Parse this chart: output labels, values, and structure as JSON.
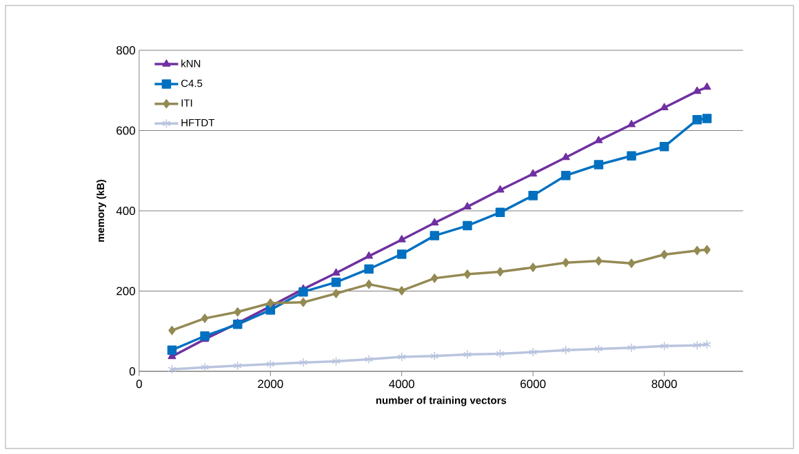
{
  "chart_data": {
    "type": "line",
    "xlabel": "number of training vectors",
    "ylabel": "memory (kB)",
    "x": [
      500,
      1000,
      1500,
      2000,
      2500,
      3000,
      3500,
      4000,
      4500,
      5000,
      5500,
      6000,
      6500,
      7000,
      7500,
      8000,
      8500,
      8650
    ],
    "series": [
      {
        "name": "kNN",
        "color": "#7030a0",
        "marker": "triangle",
        "values": [
          37,
          80,
          120,
          162,
          205,
          245,
          287,
          328,
          370,
          410,
          452,
          492,
          533,
          575,
          615,
          657,
          698,
          708
        ]
      },
      {
        "name": "C4.5",
        "color": "#0070c0",
        "marker": "square",
        "values": [
          53,
          88,
          117,
          153,
          198,
          222,
          255,
          292,
          338,
          363,
          396,
          438,
          488,
          515,
          537,
          560,
          627,
          630
        ]
      },
      {
        "name": "ITI",
        "color": "#948a54",
        "marker": "diamond",
        "values": [
          102,
          132,
          148,
          170,
          172,
          194,
          217,
          201,
          232,
          242,
          248,
          259,
          271,
          275,
          269,
          291,
          301,
          303
        ]
      },
      {
        "name": "HFTDT",
        "color": "#b9c4de",
        "marker": "cross",
        "values": [
          5,
          10,
          14,
          18,
          22,
          25,
          30,
          36,
          38,
          42,
          44,
          48,
          53,
          56,
          59,
          63,
          65,
          67
        ]
      }
    ],
    "xlim": [
      0,
      9200
    ],
    "ylim": [
      0,
      800
    ],
    "xticks": [
      0,
      2000,
      4000,
      6000,
      8000
    ],
    "yticks": [
      0,
      200,
      400,
      600,
      800
    ],
    "grid": "y",
    "legend": "top left",
    "line_style": "solid"
  }
}
